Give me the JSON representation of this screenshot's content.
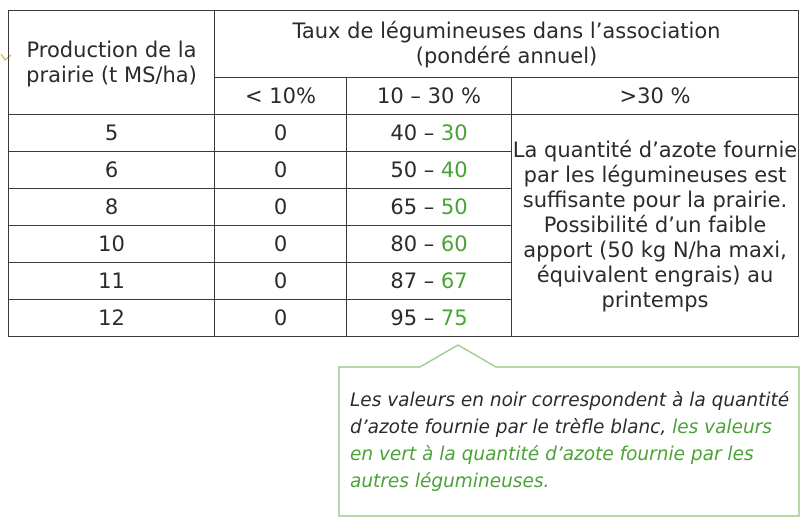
{
  "table": {
    "header": {
      "production": "Production de la prairie (t MS/ha)",
      "rate_title": "Taux de légumineuses dans l’association",
      "rate_subtitle": "(pondéré annuel)",
      "col_low": "< 10%",
      "col_mid": "10 – 30 %",
      "col_high": ">30 %"
    },
    "rows": [
      {
        "production": "5",
        "low": "0",
        "mid_black": "40",
        "mid_sep": " – ",
        "mid_green": "30"
      },
      {
        "production": "6",
        "low": "0",
        "mid_black": "50",
        "mid_sep": " – ",
        "mid_green": "40"
      },
      {
        "production": "8",
        "low": "0",
        "mid_black": "65",
        "mid_sep": " – ",
        "mid_green": "50"
      },
      {
        "production": "10",
        "low": "0",
        "mid_black": "80",
        "mid_sep": " – ",
        "mid_green": "60"
      },
      {
        "production": "11",
        "low": "0",
        "mid_black": "87",
        "mid_sep": " – ",
        "mid_green": "67"
      },
      {
        "production": "12",
        "low": "0",
        "mid_black": "95",
        "mid_sep": " – ",
        "mid_green": "75"
      }
    ],
    "high_note": "La quantité d’azote fournie par les légumineuses est suffisante pour la prairie. Possibilité d’un faible apport (50 kg N/ha maxi, équivalent engrais) au printemps"
  },
  "callout": {
    "text_black": "Les valeurs en noir correspondent à la quantité d’azote fournie par le trèfle blanc, ",
    "text_green": "les valeurs en vert à la quantité d’azote fournie par les autres légumineuses."
  },
  "colors": {
    "green": "#4aa337",
    "border": "#3a3a3a",
    "callout_border": "#9ccc8a"
  }
}
